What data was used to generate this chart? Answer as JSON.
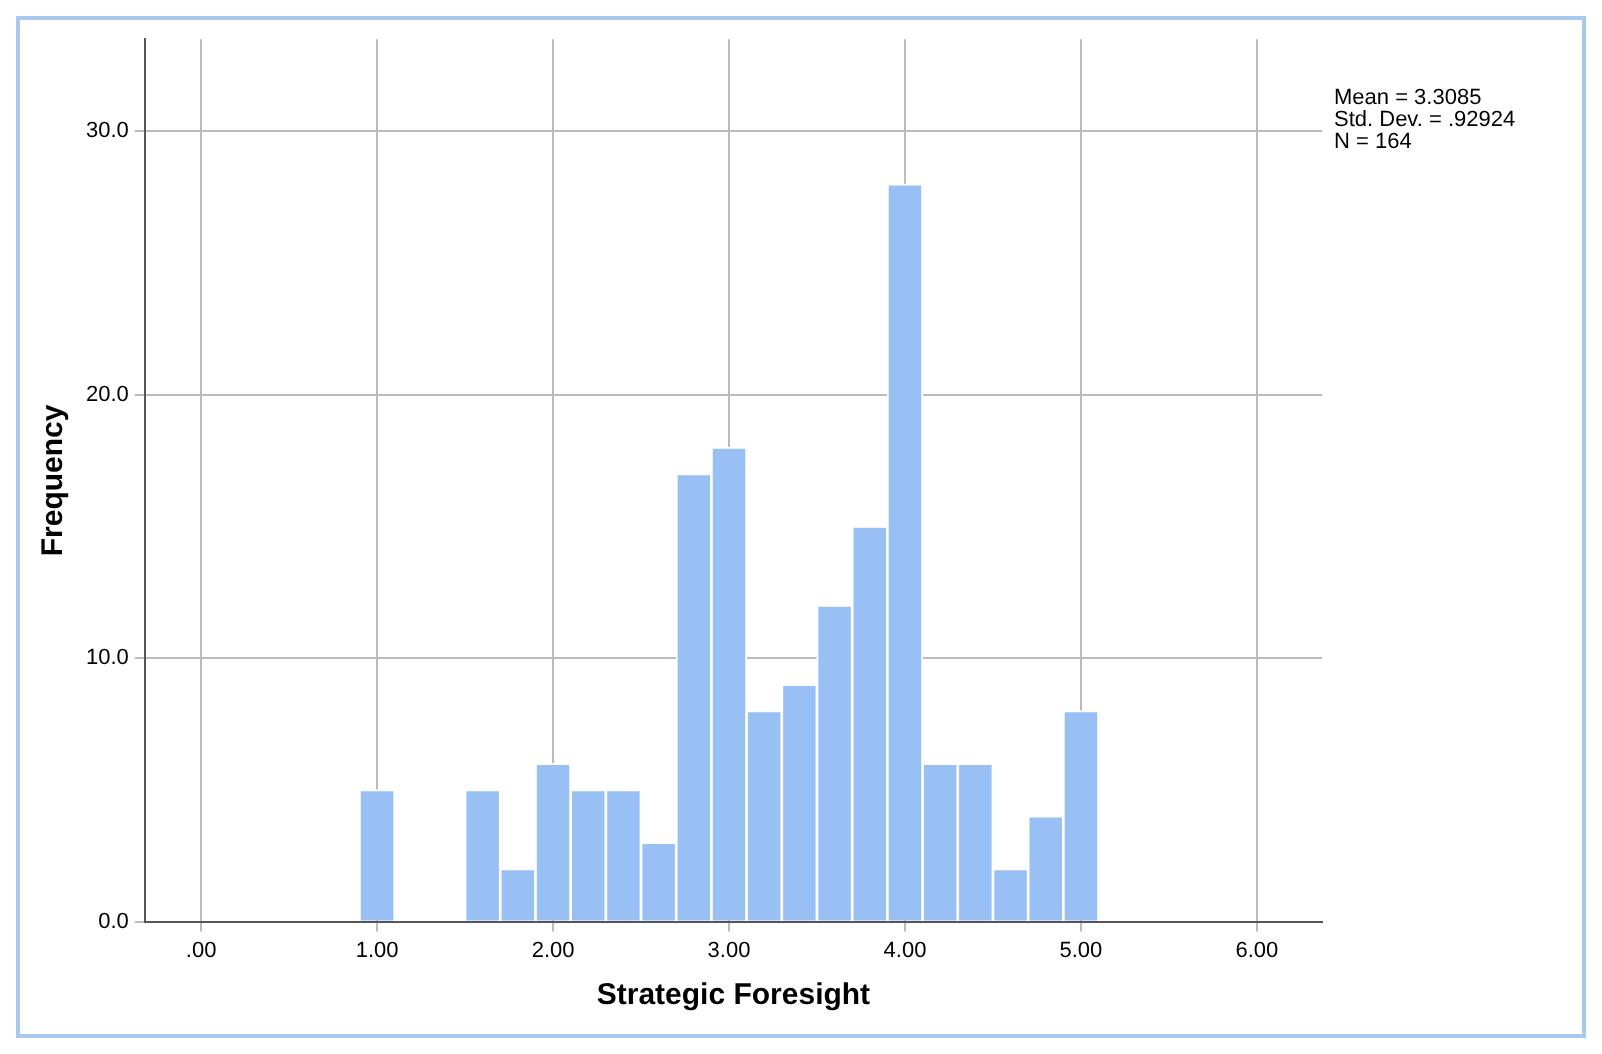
{
  "chart_data": {
    "type": "histogram",
    "xlabel": "Strategic Foresight",
    "ylabel": "Frequency",
    "bins": [
      0.9,
      1.1,
      1.3,
      1.5,
      1.7,
      1.9,
      2.1,
      2.3,
      2.5,
      2.7,
      2.9,
      3.1,
      3.3,
      3.5,
      3.7,
      3.9,
      4.1,
      4.3,
      4.5,
      4.7,
      4.9,
      5.1
    ],
    "values": [
      5,
      0,
      0,
      5,
      2,
      6,
      5,
      5,
      3,
      17,
      18,
      8,
      9,
      12,
      15,
      28,
      6,
      6,
      2,
      4,
      8
    ],
    "color": "#99c0f5",
    "xlim": [
      -0.32,
      6.37
    ],
    "xticks": [
      {
        "value": 0,
        "label": ".00"
      },
      {
        "value": 1,
        "label": "1.00"
      },
      {
        "value": 2,
        "label": "2.00"
      },
      {
        "value": 3,
        "label": "3.00"
      },
      {
        "value": 4,
        "label": "4.00"
      },
      {
        "value": 5,
        "label": "5.00"
      },
      {
        "value": 6,
        "label": "6.00"
      }
    ],
    "ylim": [
      0,
      33.5
    ],
    "yticks": [
      {
        "value": 0,
        "label": "0.0"
      },
      {
        "value": 10,
        "label": "10.0"
      },
      {
        "value": 20,
        "label": "20.0"
      },
      {
        "value": 30,
        "label": "30.0"
      }
    ],
    "grid": true,
    "annotations": [
      "Mean = 3.3085",
      "Std. Dev. = .92924",
      "N = 164"
    ]
  }
}
